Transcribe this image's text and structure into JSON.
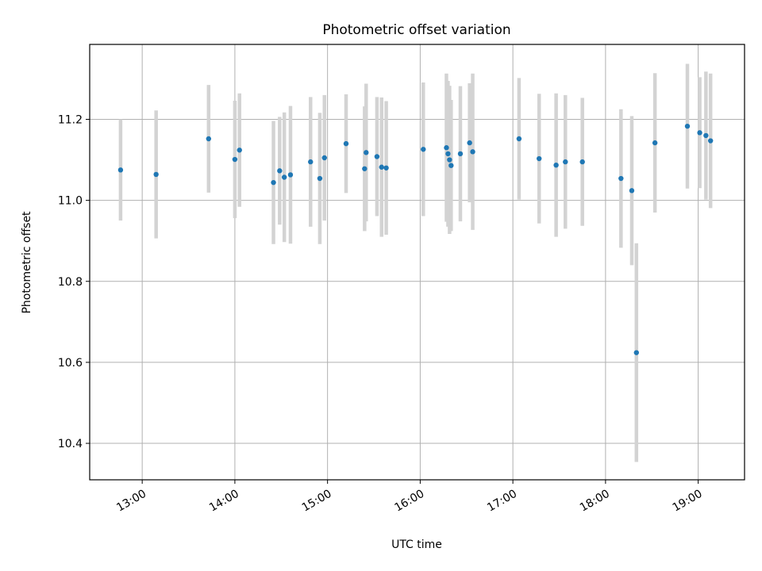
{
  "chart_data": {
    "type": "scatter",
    "title": "Photometric offset variation",
    "xlabel": "UTC time",
    "ylabel": "Photometric offset",
    "xlim": [
      "12:26",
      "19:30"
    ],
    "ylim": [
      10.31,
      11.385
    ],
    "grid": true,
    "x_ticks": [
      "13:00",
      "14:00",
      "15:00",
      "16:00",
      "17:00",
      "18:00",
      "19:00"
    ],
    "y_ticks": [
      "10.4",
      "10.6",
      "10.8",
      "11.0",
      "11.2"
    ],
    "point_color": "#1f77b4",
    "errorbar_color": "#d3d3d3",
    "points": [
      {
        "time": "12:46",
        "value": 11.075,
        "err": 0.125
      },
      {
        "time": "13:09",
        "value": 11.064,
        "err": 0.158
      },
      {
        "time": "13:43",
        "value": 11.152,
        "err": 0.133
      },
      {
        "time": "14:00",
        "value": 11.101,
        "err": 0.145
      },
      {
        "time": "14:03",
        "value": 11.124,
        "err": 0.14
      },
      {
        "time": "14:25",
        "value": 11.044,
        "err": 0.152
      },
      {
        "time": "14:29",
        "value": 11.073,
        "err": 0.133
      },
      {
        "time": "14:32",
        "value": 11.057,
        "err": 0.16
      },
      {
        "time": "14:36",
        "value": 11.063,
        "err": 0.17
      },
      {
        "time": "14:49",
        "value": 11.095,
        "err": 0.16
      },
      {
        "time": "14:55",
        "value": 11.054,
        "err": 0.162
      },
      {
        "time": "14:58",
        "value": 11.105,
        "err": 0.155
      },
      {
        "time": "15:12",
        "value": 11.14,
        "err": 0.122
      },
      {
        "time": "15:24",
        "value": 11.078,
        "err": 0.154
      },
      {
        "time": "15:25",
        "value": 11.118,
        "err": 0.17
      },
      {
        "time": "15:32",
        "value": 11.108,
        "err": 0.147
      },
      {
        "time": "15:35",
        "value": 11.082,
        "err": 0.172
      },
      {
        "time": "15:38",
        "value": 11.08,
        "err": 0.165
      },
      {
        "time": "16:02",
        "value": 11.126,
        "err": 0.165
      },
      {
        "time": "16:17",
        "value": 11.13,
        "err": 0.183
      },
      {
        "time": "16:18",
        "value": 11.115,
        "err": 0.18
      },
      {
        "time": "16:19",
        "value": 11.1,
        "err": 0.183
      },
      {
        "time": "16:20",
        "value": 11.086,
        "err": 0.162
      },
      {
        "time": "16:26",
        "value": 11.115,
        "err": 0.167
      },
      {
        "time": "16:32",
        "value": 11.142,
        "err": 0.147
      },
      {
        "time": "16:34",
        "value": 11.12,
        "err": 0.193
      },
      {
        "time": "17:04",
        "value": 11.152,
        "err": 0.15
      },
      {
        "time": "17:17",
        "value": 11.103,
        "err": 0.16
      },
      {
        "time": "17:28",
        "value": 11.087,
        "err": 0.177
      },
      {
        "time": "17:34",
        "value": 11.095,
        "err": 0.165
      },
      {
        "time": "17:45",
        "value": 11.095,
        "err": 0.158
      },
      {
        "time": "18:10",
        "value": 11.054,
        "err": 0.171
      },
      {
        "time": "18:17",
        "value": 11.024,
        "err": 0.184
      },
      {
        "time": "18:20",
        "value": 10.624,
        "err": 0.27
      },
      {
        "time": "18:32",
        "value": 11.142,
        "err": 0.172
      },
      {
        "time": "18:53",
        "value": 11.183,
        "err": 0.154
      },
      {
        "time": "19:01",
        "value": 11.167,
        "err": 0.137
      },
      {
        "time": "19:05",
        "value": 11.16,
        "err": 0.158
      },
      {
        "time": "19:08",
        "value": 11.147,
        "err": 0.166
      }
    ]
  }
}
